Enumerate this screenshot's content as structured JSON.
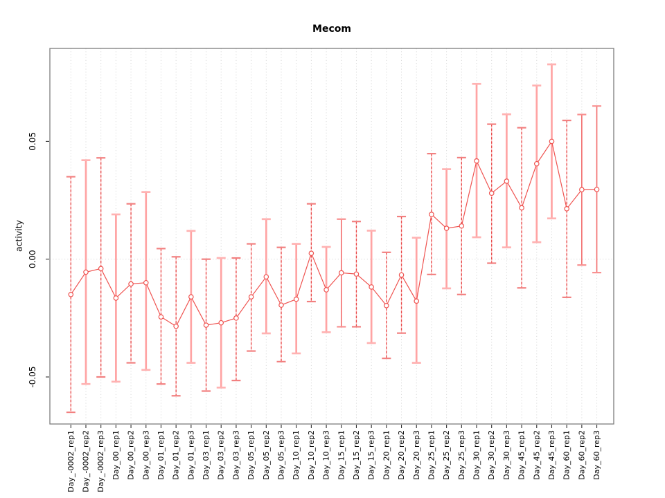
{
  "chart_data": {
    "type": "scatter",
    "title": "Mecom",
    "xlabel": "",
    "ylabel": "activity",
    "legend": "none",
    "grid": "dotted vertical line at each category; dotted horizontal line at y=0",
    "ylim": [
      -0.07,
      0.0895
    ],
    "y_ticks": [
      0.05,
      0.0,
      -0.05
    ],
    "y_tick_labels": [
      "0.05",
      "0.00",
      "-0.05"
    ],
    "series_note": "median point with asymmetric error bars (lower, upper)",
    "categories": [
      "Day_-0002_rep1",
      "Day_-0002_rep2",
      "Day_-0002_rep3",
      "Day_00_rep1",
      "Day_00_rep2",
      "Day_00_rep3",
      "Day_01_rep1",
      "Day_01_rep2",
      "Day_01_rep3",
      "Day_03_rep1",
      "Day_03_rep2",
      "Day_03_rep3",
      "Day_05_rep1",
      "Day_05_rep2",
      "Day_05_rep3",
      "Day_10_rep1",
      "Day_10_rep2",
      "Day_10_rep3",
      "Day_15_rep1",
      "Day_15_rep2",
      "Day_15_rep3",
      "Day_20_rep1",
      "Day_20_rep2",
      "Day_20_rep3",
      "Day_25_rep1",
      "Day_25_rep2",
      "Day_25_rep3",
      "Day_30_rep1",
      "Day_30_rep2",
      "Day_30_rep3",
      "Day_45_rep1",
      "Day_45_rep2",
      "Day_45_rep3",
      "Day_60_rep1",
      "Day_60_rep2",
      "Day_60_rep3"
    ],
    "medians": [
      -0.015,
      -0.0055,
      -0.004,
      -0.0165,
      -0.0105,
      -0.01,
      -0.0245,
      -0.0285,
      -0.016,
      -0.028,
      -0.027,
      -0.025,
      -0.016,
      -0.0075,
      -0.0195,
      -0.017,
      0.0025,
      -0.013,
      -0.0058,
      -0.0063,
      -0.0118,
      -0.0197,
      -0.0067,
      -0.0178,
      0.019,
      0.0131,
      0.0141,
      0.0417,
      0.028,
      0.0331,
      0.0218,
      0.0405,
      0.05,
      0.0214,
      0.0295,
      0.0296
    ],
    "lower": [
      -0.065,
      -0.053,
      -0.05,
      -0.052,
      -0.044,
      -0.047,
      -0.053,
      -0.058,
      -0.044,
      -0.056,
      -0.0545,
      -0.0515,
      -0.039,
      -0.0315,
      -0.0435,
      -0.04,
      -0.018,
      -0.031,
      -0.0287,
      -0.0287,
      -0.0356,
      -0.0421,
      -0.0314,
      -0.044,
      -0.0065,
      -0.0124,
      -0.015,
      0.0093,
      -0.0017,
      0.005,
      -0.0122,
      0.0072,
      0.0173,
      -0.0162,
      -0.0025,
      -0.0057
    ],
    "upper": [
      0.035,
      0.042,
      0.043,
      0.019,
      0.0235,
      0.0285,
      0.0045,
      0.001,
      0.012,
      0.0,
      0.0005,
      0.0005,
      0.0065,
      0.017,
      0.005,
      0.0065,
      0.0235,
      0.0052,
      0.017,
      0.016,
      0.0121,
      0.0029,
      0.0181,
      0.0091,
      0.0448,
      0.0382,
      0.0431,
      0.0744,
      0.0573,
      0.0615,
      0.0558,
      0.0737,
      0.0827,
      0.0589,
      0.0614,
      0.065
    ],
    "bar_styles": [
      "dashed",
      "light",
      "dashed",
      "light",
      "dashed",
      "light",
      "dashed",
      "dashed",
      "light",
      "dashed",
      "light",
      "dashed",
      "dashed",
      "light",
      "dashed",
      "light",
      "dashed",
      "light",
      "solid",
      "dashed",
      "light",
      "dashed",
      "dashed",
      "light",
      "dashed",
      "light",
      "dashed",
      "light",
      "dashed",
      "light",
      "dashed",
      "light",
      "light",
      "dashed",
      "solid",
      "solid"
    ],
    "colors": {
      "point": "#ef5350",
      "median_line": "#ef5350",
      "dashed_bar": "#e64545",
      "dashed_bar_under": "#ffc2c2",
      "dashed_bar_cap": "#f28080",
      "light_bar": "#ffa4a4",
      "light_bar_cap": "#ffb2b2",
      "solid_bar": "#f26b6b",
      "solid_bar_cap": "#f89090",
      "grid": "#d9d9d9",
      "frame": "#7d7d7d",
      "tick": "#2e2e2e",
      "text": "#000000"
    }
  }
}
